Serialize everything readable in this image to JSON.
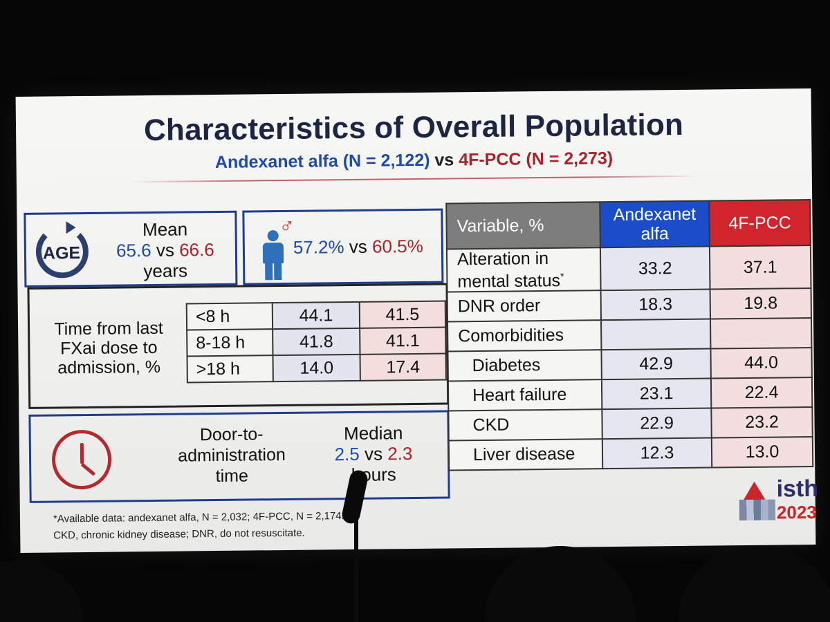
{
  "slide": {
    "title": "Characteristics of Overall Population",
    "subtitle": {
      "andexanet": "Andexanet alfa (N = 2,122)",
      "vs": " vs ",
      "pcc": "4F-PCC (N = 2,273)"
    },
    "age": {
      "icon_label": "AGE",
      "line1": "Mean",
      "andexanet": "65.6",
      "vs": " vs ",
      "pcc": "66.6",
      "line3": "years"
    },
    "sex": {
      "andexanet": "57.2%",
      "vs": " vs ",
      "pcc": "60.5%"
    },
    "time_from_last_dose": {
      "label": "Time from last FXai dose to admission, %",
      "rows": [
        {
          "label": "<8 h",
          "andexanet": "44.1",
          "pcc": "41.5"
        },
        {
          "label": "8-18 h",
          "andexanet": "41.8",
          "pcc": "41.1"
        },
        {
          "label": ">18 h",
          "andexanet": "14.0",
          "pcc": "17.4"
        }
      ]
    },
    "door_to_admin": {
      "line1": "Door-to-",
      "line2": "administration",
      "line3": "time",
      "median_label": "Median",
      "andexanet": "2.5",
      "vs": " vs ",
      "pcc": "2.3",
      "unit": "hours"
    },
    "table": {
      "headers": {
        "variable": "Variable, %",
        "andexanet": "Andexanet alfa",
        "pcc": "4F-PCC"
      },
      "rows": [
        {
          "variable_line1": "Alteration in",
          "variable_line2": "mental status",
          "sup": "*",
          "andexanet": "33.2",
          "pcc": "37.1"
        },
        {
          "variable": "DNR order",
          "andexanet": "18.3",
          "pcc": "19.8"
        },
        {
          "variable": "Comorbidities",
          "andexanet": "",
          "pcc": ""
        },
        {
          "variable": "Diabetes",
          "andexanet": "42.9",
          "pcc": "44.0"
        },
        {
          "variable": "Heart failure",
          "andexanet": "23.1",
          "pcc": "22.4"
        },
        {
          "variable": "CKD",
          "andexanet": "22.9",
          "pcc": "23.2"
        },
        {
          "variable": "Liver disease",
          "andexanet": "12.3",
          "pcc": "13.0"
        }
      ]
    },
    "footnote": {
      "line1": "*Available data: andexanet alfa, N = 2,032; 4F-PCC, N = 2,174.",
      "line2": "CKD, chronic kidney disease; DNR, do not resuscitate."
    },
    "logo": {
      "name": "isth",
      "year": "2023"
    }
  },
  "colors": {
    "andexanet": "#1f4aa8",
    "pcc": "#a8232b",
    "header_andexanet": "#1b4dc9",
    "header_pcc": "#d0252c"
  }
}
